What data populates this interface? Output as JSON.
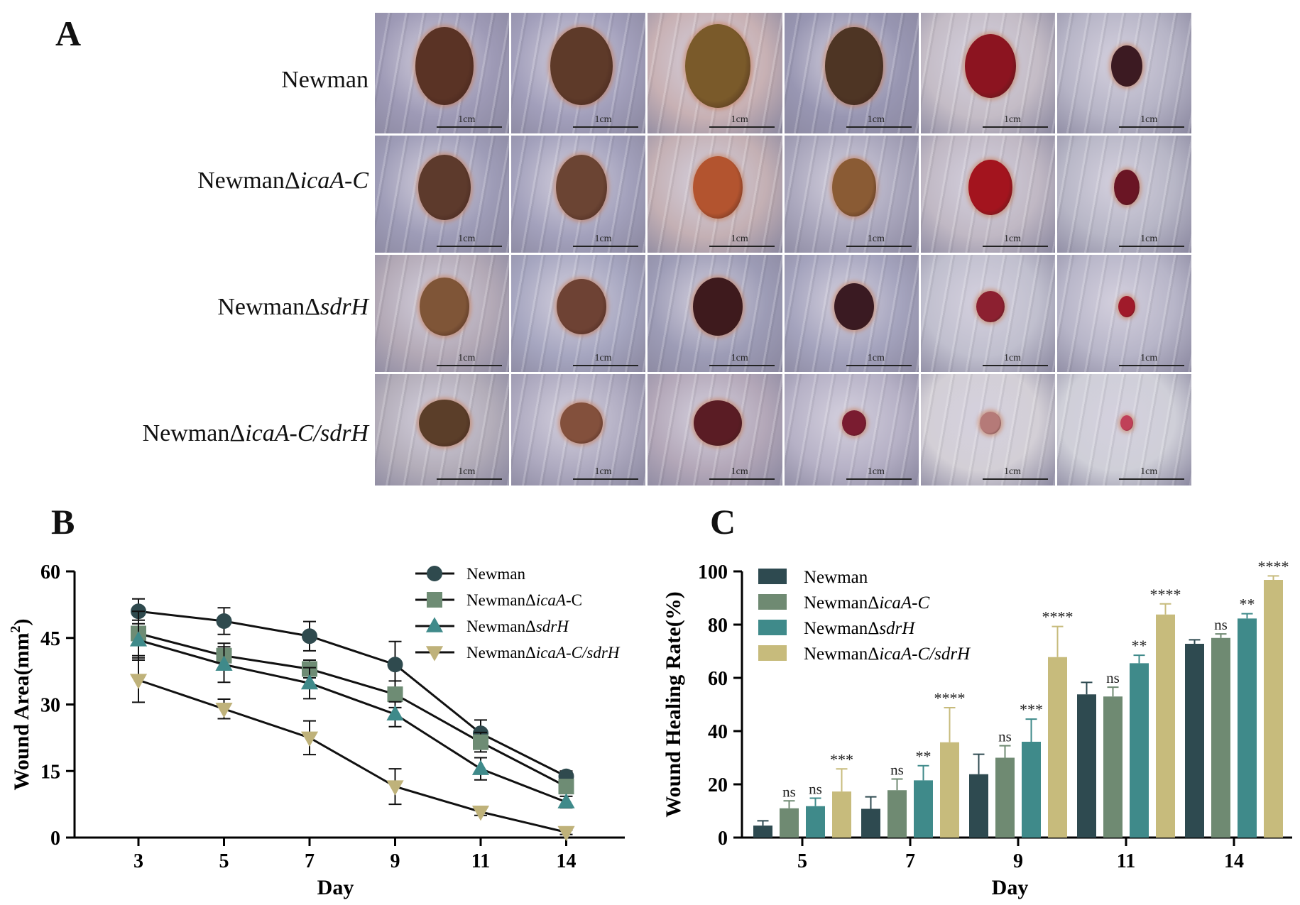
{
  "panels": {
    "a": "A",
    "b": "B",
    "c": "C"
  },
  "panel_a": {
    "rows": [
      {
        "prefix": "Newman",
        "italic": ""
      },
      {
        "prefix": "NewmanΔ",
        "italic": "icaA-C"
      },
      {
        "prefix": "NewmanΔ",
        "italic": "sdrH"
      },
      {
        "prefix": "NewmanΔ",
        "italic": "icaA-C/sdrH"
      }
    ],
    "scale_label": "1cm",
    "wound_colors": [
      [
        "#5a3325",
        "#5e3a29",
        "#7a5a2a",
        "#4e3524",
        "#8c1420",
        "#3c1a22"
      ],
      [
        "#5d3a2c",
        "#6b4433",
        "#b3542f",
        "#8a5b34",
        "#a3141e",
        "#6a1524"
      ],
      [
        "#7f5537",
        "#6e4234",
        "#3e1a1d",
        "#3a1a22",
        "#8c2030",
        "#a01a2a"
      ],
      [
        "#5b3e29",
        "#83503c",
        "#5a1c24",
        "#7a1c30",
        "#b57a78",
        "#c04058"
      ]
    ]
  },
  "chart_data": [
    {
      "type": "line",
      "title": "",
      "xlabel": "Day",
      "ylabel": "Wound Area(mm",
      "ylabel_sup": "2",
      "ylabel_close": ")",
      "categories": [
        "3",
        "5",
        "7",
        "9",
        "11",
        "14"
      ],
      "ylim": [
        0,
        60
      ],
      "yticks": [
        "0",
        "15",
        "30",
        "45",
        "60"
      ],
      "legend_position": "top-right",
      "series": [
        {
          "name": "Newman",
          "name_italic": "",
          "marker": "circle",
          "color": "#2f4a4e",
          "values": [
            51.0,
            48.8,
            45.4,
            39.0,
            23.5,
            13.8
          ],
          "errors": [
            2.8,
            3.0,
            3.3,
            5.2,
            3.0,
            1.2
          ]
        },
        {
          "name": "NewmanΔ",
          "name_italic": "icaA",
          "name_suffix": "-C",
          "marker": "square",
          "color": "#6e8c74",
          "values": [
            46.0,
            41.0,
            38.0,
            32.3,
            21.5,
            11.5
          ],
          "errors": [
            5.0,
            2.8,
            2.0,
            3.0,
            2.2,
            1.5
          ]
        },
        {
          "name": "NewmanΔ",
          "name_italic": "sdrH",
          "name_suffix": "",
          "marker": "triangle-up",
          "color": "#3f8a8a",
          "values": [
            44.5,
            39.0,
            34.8,
            27.8,
            15.5,
            8.0
          ],
          "errors": [
            4.5,
            4.0,
            3.5,
            2.8,
            2.5,
            1.3
          ]
        },
        {
          "name": "NewmanΔ",
          "name_italic": "icaA-C/sdrH",
          "name_suffix": "",
          "marker": "triangle-down",
          "color": "#bfb27a",
          "values": [
            35.5,
            29.0,
            22.5,
            11.5,
            5.8,
            1.2
          ],
          "errors": [
            5.0,
            2.2,
            3.8,
            4.0,
            0.8,
            0.5
          ]
        }
      ]
    },
    {
      "type": "bar",
      "title": "",
      "xlabel": "Day",
      "ylabel": "Wound Healing Rate(%)",
      "categories": [
        "5",
        "7",
        "9",
        "11",
        "14"
      ],
      "ylim": [
        0,
        100
      ],
      "yticks": [
        "0",
        "20",
        "40",
        "60",
        "80",
        "100"
      ],
      "legend_position": "top-left",
      "series": [
        {
          "name": "Newman",
          "name_italic": "",
          "color": "#2e4a50",
          "values": [
            4.5,
            10.8,
            23.8,
            53.8,
            72.8
          ],
          "errors": [
            1.8,
            4.5,
            7.5,
            4.5,
            1.5
          ],
          "significance": [
            "",
            "",
            "",
            "",
            ""
          ]
        },
        {
          "name": "NewmanΔ",
          "name_italic": "icaA-C",
          "color": "#6f8a72",
          "values": [
            11.0,
            17.8,
            30.0,
            53.0,
            75.0
          ],
          "errors": [
            2.8,
            4.2,
            4.5,
            3.5,
            1.5
          ],
          "significance": [
            "ns",
            "ns",
            "ns",
            "ns",
            "ns"
          ]
        },
        {
          "name": "NewmanΔ",
          "name_italic": "sdrH",
          "color": "#3f8a8a",
          "values": [
            11.8,
            21.5,
            36.0,
            65.5,
            82.3
          ],
          "errors": [
            3.0,
            5.5,
            8.5,
            3.0,
            1.8
          ],
          "significance": [
            "ns",
            "**",
            "***",
            "**",
            "**"
          ]
        },
        {
          "name": "NewmanΔ",
          "name_italic": "icaA-C/sdrH",
          "color": "#c7bb7c",
          "values": [
            17.3,
            35.8,
            67.8,
            83.8,
            96.8
          ],
          "errors": [
            8.5,
            13.0,
            11.5,
            4.0,
            1.5
          ],
          "significance": [
            "***",
            "****",
            "****",
            "****",
            "****"
          ]
        }
      ]
    }
  ]
}
